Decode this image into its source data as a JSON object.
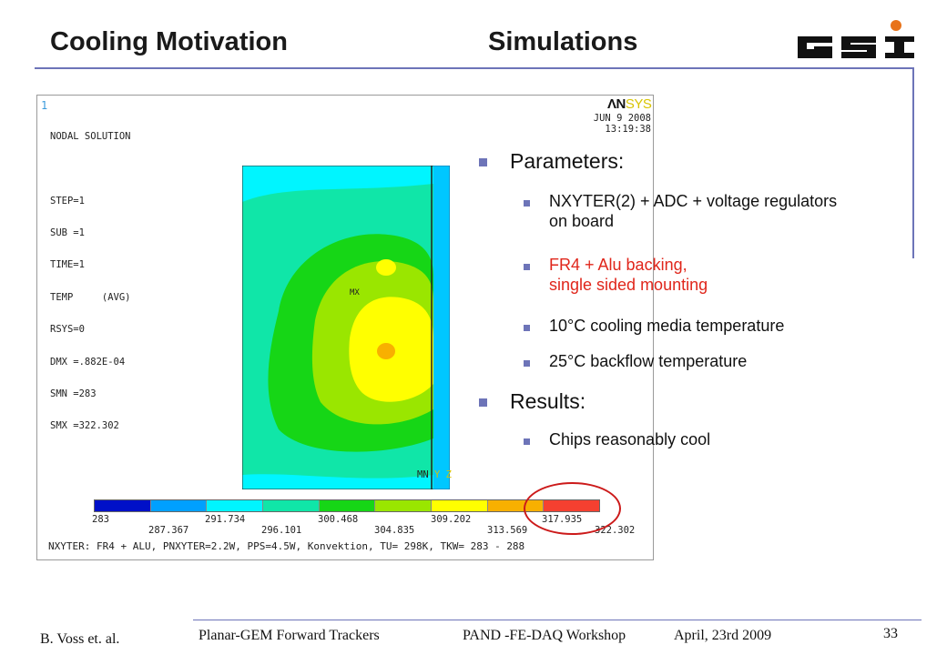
{
  "header": {
    "title_left": "Cooling Motivation",
    "title_right": "Simulations",
    "logo_text": "GSI",
    "accent_color": "#6d74b8"
  },
  "ansys": {
    "panel_number": "1",
    "logo_a": "ΛN",
    "logo_b": "SYS",
    "nodal_lines": [
      "NODAL SOLUTION",
      "STEP=1",
      "SUB =1",
      "TIME=1",
      "TEMP     (AVG)",
      "RSYS=0",
      "DMX =.882E-04",
      "SMN =283",
      "SMX =322.302"
    ],
    "date": "JUN  9 2008",
    "time": "13:19:38",
    "mx_label": "MX",
    "mn_label": "MN",
    "axis_y": "Y",
    "axis_z": "Z",
    "legend_colors": [
      "#0010c8",
      "#00a0ff",
      "#00f5ff",
      "#10e6a8",
      "#16d616",
      "#9ae600",
      "#ffff00",
      "#f8b000",
      "#f54030"
    ],
    "legend_top": [
      "283",
      "291.734",
      "300.468",
      "309.202",
      "317.935"
    ],
    "legend_bottom": [
      "287.367",
      "296.101",
      "304.835",
      "313.569",
      "322.302"
    ],
    "caption": "NXYTER: FR4 + ALU, PNXYTER=2.2W, PPS=4.5W, Konvektion, TU= 298K, TKW= 283 - 288"
  },
  "bullets": {
    "parameters_label": "Parameters:",
    "p1": "NXYTER(2) + ADC + voltage regulators\non board",
    "p2": "FR4 + Alu backing,\nsingle sided mounting",
    "p3": "10°C cooling media temperature",
    "p4": "25°C backflow temperature",
    "results_label": "Results:",
    "r1": "Chips reasonably cool",
    "highlight_color": "#e0261b"
  },
  "footer": {
    "author": "B. Voss et. al.",
    "project": "Planar-GEM Forward Trackers",
    "workshop": "PAND -FE-DAQ Workshop",
    "date": "April, 23rd 2009",
    "page": "33"
  }
}
